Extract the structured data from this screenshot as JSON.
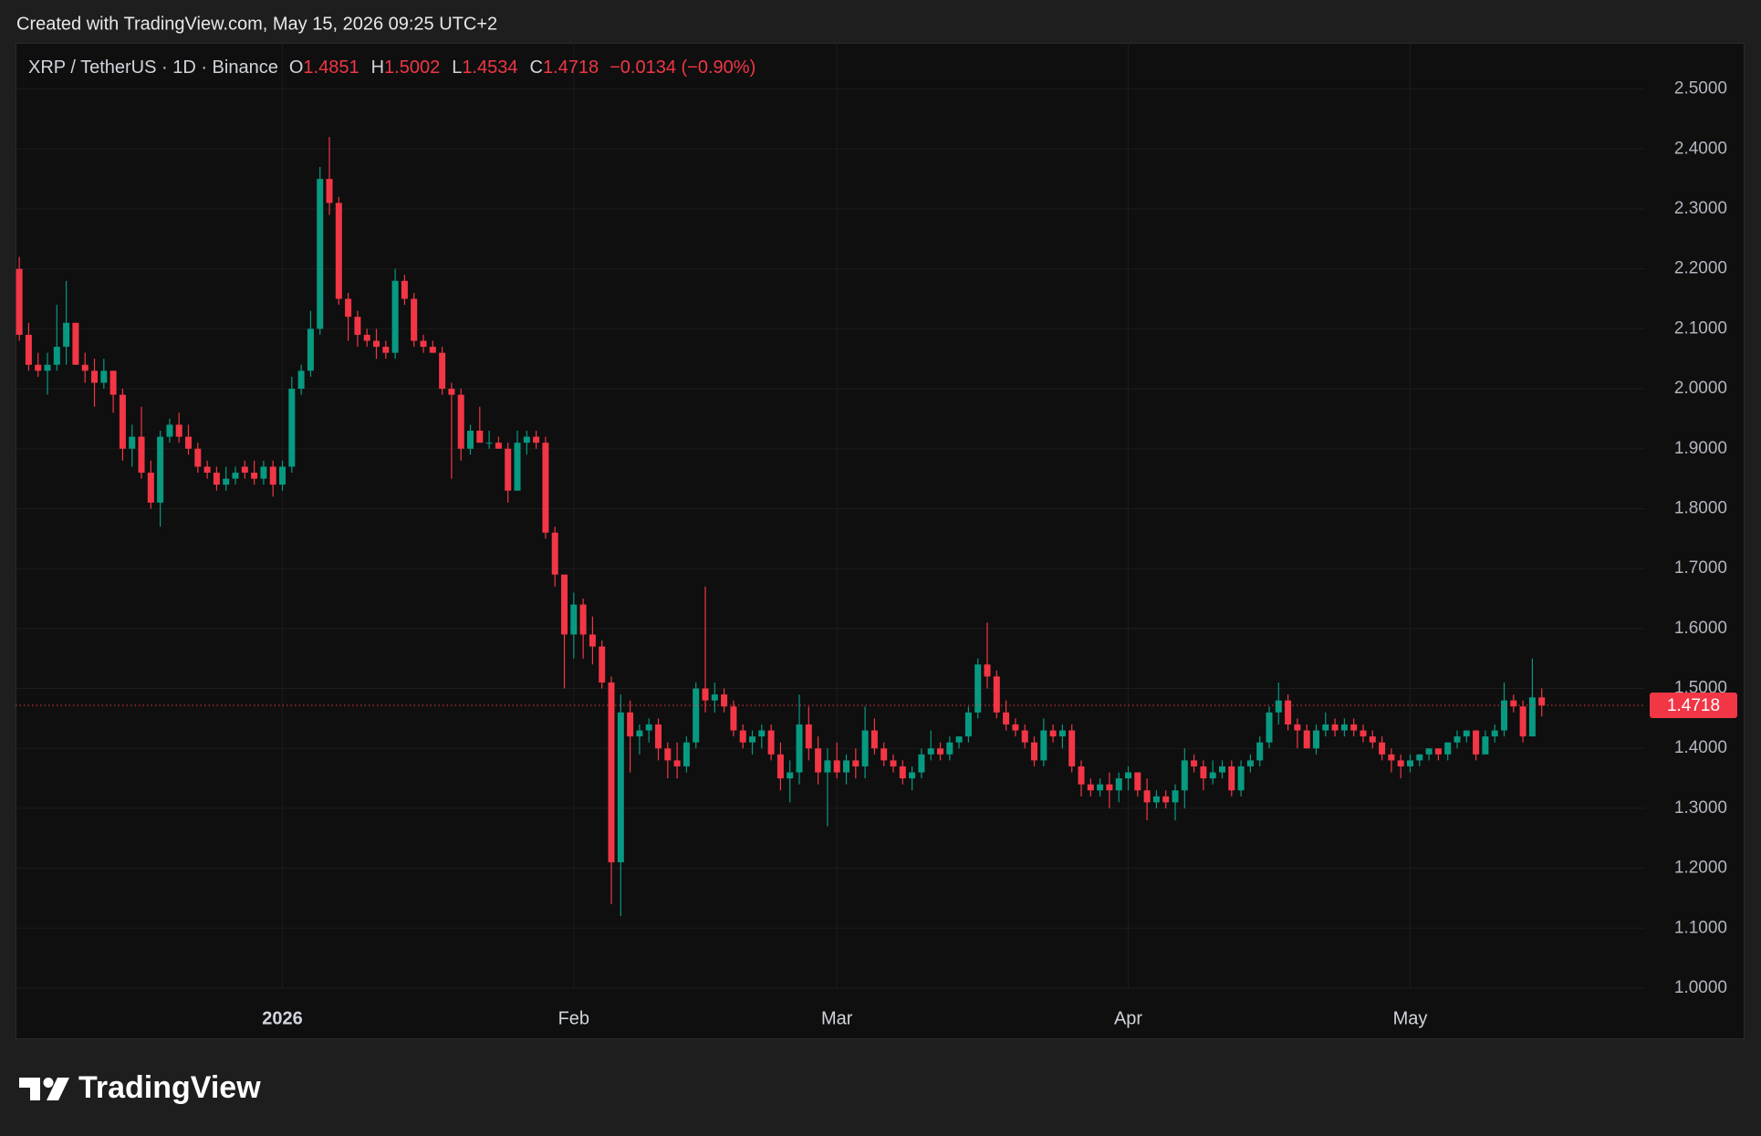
{
  "header": {
    "created": "Created with TradingView.com, May 15, 2026 09:25 UTC+2"
  },
  "footer": {
    "brand": "TradingView"
  },
  "chart_data": {
    "type": "candlestick",
    "title": "XRP / TetherUS · 1D · Binance",
    "ohlc_labels": [
      "O",
      "H",
      "L",
      "C"
    ],
    "change_label": "−0.0134 (−0.90%)",
    "up_color": "#089981",
    "down_color": "#f23645",
    "grid": true,
    "last_price_line": true,
    "xlim": [
      -0.4,
      173
    ],
    "xticks": [
      {
        "value": 28,
        "label": "2026"
      },
      {
        "value": 59,
        "label": "Feb"
      },
      {
        "value": 87,
        "label": "Mar"
      },
      {
        "value": 118,
        "label": "Apr"
      },
      {
        "value": 148,
        "label": "May"
      }
    ],
    "ylim": [
      1.0,
      2.577
    ],
    "yticks": [
      {
        "value": 1.0,
        "label": "1.0000"
      },
      {
        "value": 1.1,
        "label": "1.1000"
      },
      {
        "value": 1.2,
        "label": "1.2000"
      },
      {
        "value": 1.3,
        "label": "1.3000"
      },
      {
        "value": 1.4,
        "label": "1.4000"
      },
      {
        "value": 1.5,
        "label": "1.5000"
      },
      {
        "value": 1.6,
        "label": "1.6000"
      },
      {
        "value": 1.7,
        "label": "1.7000"
      },
      {
        "value": 1.8,
        "label": "1.8000"
      },
      {
        "value": 1.9,
        "label": "1.9000"
      },
      {
        "value": 2.0,
        "label": "2.0000"
      },
      {
        "value": 2.1,
        "label": "2.1000"
      },
      {
        "value": 2.2,
        "label": "2.2000"
      },
      {
        "value": 2.3,
        "label": "2.3000"
      },
      {
        "value": 2.4,
        "label": "2.4000"
      },
      {
        "value": 2.5,
        "label": "2.5000"
      }
    ],
    "open": [
      2.2,
      2.09,
      2.04,
      2.03,
      2.04,
      2.07,
      2.11,
      2.04,
      2.03,
      2.01,
      2.03,
      1.99,
      1.9,
      1.92,
      1.86,
      1.81,
      1.92,
      1.94,
      1.92,
      1.9,
      1.87,
      1.86,
      1.84,
      1.85,
      1.87,
      1.86,
      1.85,
      1.87,
      1.84,
      1.87,
      2.0,
      2.03,
      2.1,
      2.35,
      2.31,
      2.15,
      2.12,
      2.09,
      2.08,
      2.07,
      2.06,
      2.18,
      2.15,
      2.08,
      2.07,
      2.06,
      2.0,
      1.99,
      1.9,
      1.93,
      1.91,
      1.91,
      1.9,
      1.83,
      1.91,
      1.92,
      1.91,
      1.76,
      1.69,
      1.59,
      1.64,
      1.59,
      1.57,
      1.51,
      1.21,
      1.46,
      1.42,
      1.43,
      1.44,
      1.4,
      1.38,
      1.37,
      1.41,
      1.5,
      1.48,
      1.49,
      1.47,
      1.43,
      1.41,
      1.42,
      1.43,
      1.39,
      1.35,
      1.36,
      1.44,
      1.4,
      1.36,
      1.38,
      1.36,
      1.38,
      1.37,
      1.43,
      1.4,
      1.38,
      1.37,
      1.35,
      1.36,
      1.39,
      1.4,
      1.39,
      1.41,
      1.42,
      1.46,
      1.54,
      1.52,
      1.46,
      1.44,
      1.43,
      1.41,
      1.38,
      1.43,
      1.42,
      1.43,
      1.37,
      1.34,
      1.33,
      1.34,
      1.33,
      1.35,
      1.36,
      1.33,
      1.31,
      1.32,
      1.31,
      1.33,
      1.38,
      1.37,
      1.35,
      1.36,
      1.37,
      1.33,
      1.37,
      1.38,
      1.41,
      1.46,
      1.48,
      1.44,
      1.43,
      1.4,
      1.43,
      1.44,
      1.43,
      1.44,
      1.43,
      1.42,
      1.41,
      1.39,
      1.38,
      1.37,
      1.38,
      1.39,
      1.4,
      1.39,
      1.41,
      1.42,
      1.43,
      1.39,
      1.42,
      1.43,
      1.48,
      1.47,
      1.42,
      1.4851
    ],
    "high": [
      2.22,
      2.11,
      2.06,
      2.06,
      2.14,
      2.18,
      2.11,
      2.06,
      2.05,
      2.05,
      2.03,
      2.0,
      1.94,
      1.97,
      1.88,
      1.93,
      1.95,
      1.96,
      1.94,
      1.91,
      1.88,
      1.87,
      1.87,
      1.87,
      1.88,
      1.88,
      1.88,
      1.88,
      1.88,
      2.02,
      2.04,
      2.13,
      2.37,
      2.42,
      2.32,
      2.16,
      2.13,
      2.1,
      2.1,
      2.08,
      2.2,
      2.19,
      2.16,
      2.09,
      2.08,
      2.07,
      2.01,
      2.0,
      1.94,
      1.97,
      1.93,
      1.92,
      1.91,
      1.93,
      1.93,
      1.93,
      1.92,
      1.77,
      1.69,
      1.66,
      1.65,
      1.62,
      1.58,
      1.52,
      1.49,
      1.48,
      1.44,
      1.45,
      1.45,
      1.41,
      1.41,
      1.42,
      1.51,
      1.67,
      1.51,
      1.5,
      1.48,
      1.44,
      1.43,
      1.44,
      1.44,
      1.41,
      1.38,
      1.49,
      1.47,
      1.42,
      1.4,
      1.41,
      1.39,
      1.4,
      1.47,
      1.45,
      1.41,
      1.39,
      1.38,
      1.37,
      1.4,
      1.43,
      1.41,
      1.42,
      1.42,
      1.47,
      1.55,
      1.61,
      1.53,
      1.48,
      1.45,
      1.44,
      1.42,
      1.45,
      1.44,
      1.44,
      1.44,
      1.38,
      1.35,
      1.35,
      1.36,
      1.36,
      1.37,
      1.36,
      1.35,
      1.33,
      1.33,
      1.34,
      1.4,
      1.39,
      1.38,
      1.38,
      1.38,
      1.38,
      1.38,
      1.39,
      1.42,
      1.47,
      1.51,
      1.49,
      1.45,
      1.44,
      1.44,
      1.46,
      1.45,
      1.45,
      1.45,
      1.44,
      1.43,
      1.42,
      1.4,
      1.39,
      1.39,
      1.39,
      1.4,
      1.4,
      1.41,
      1.43,
      1.43,
      1.43,
      1.43,
      1.44,
      1.51,
      1.49,
      1.48,
      1.55,
      1.5002
    ],
    "low": [
      2.08,
      2.03,
      2.02,
      1.99,
      2.03,
      2.04,
      2.04,
      2.01,
      1.97,
      2.0,
      1.96,
      1.88,
      1.87,
      1.85,
      1.8,
      1.77,
      1.91,
      1.91,
      1.89,
      1.86,
      1.85,
      1.83,
      1.83,
      1.84,
      1.85,
      1.84,
      1.84,
      1.82,
      1.83,
      1.86,
      1.99,
      2.02,
      2.09,
      2.29,
      2.14,
      2.08,
      2.07,
      2.07,
      2.05,
      2.05,
      2.05,
      2.14,
      2.07,
      2.06,
      2.06,
      1.99,
      1.85,
      1.88,
      1.89,
      1.91,
      1.9,
      1.9,
      1.81,
      1.83,
      1.89,
      1.9,
      1.75,
      1.67,
      1.5,
      1.55,
      1.55,
      1.54,
      1.5,
      1.14,
      1.12,
      1.36,
      1.39,
      1.41,
      1.38,
      1.35,
      1.35,
      1.36,
      1.4,
      1.46,
      1.46,
      1.46,
      1.42,
      1.4,
      1.39,
      1.4,
      1.38,
      1.33,
      1.31,
      1.34,
      1.38,
      1.34,
      1.27,
      1.35,
      1.34,
      1.35,
      1.35,
      1.39,
      1.37,
      1.36,
      1.34,
      1.33,
      1.35,
      1.38,
      1.38,
      1.38,
      1.4,
      1.41,
      1.45,
      1.5,
      1.45,
      1.43,
      1.42,
      1.4,
      1.37,
      1.37,
      1.41,
      1.4,
      1.36,
      1.32,
      1.32,
      1.32,
      1.3,
      1.31,
      1.33,
      1.32,
      1.28,
      1.3,
      1.3,
      1.28,
      1.3,
      1.36,
      1.33,
      1.34,
      1.35,
      1.32,
      1.32,
      1.36,
      1.37,
      1.4,
      1.44,
      1.43,
      1.4,
      1.4,
      1.39,
      1.42,
      1.42,
      1.42,
      1.42,
      1.41,
      1.4,
      1.38,
      1.36,
      1.35,
      1.36,
      1.37,
      1.38,
      1.38,
      1.38,
      1.4,
      1.41,
      1.38,
      1.39,
      1.41,
      1.42,
      1.46,
      1.41,
      1.42,
      1.4534
    ],
    "close": [
      2.09,
      2.04,
      2.03,
      2.04,
      2.07,
      2.11,
      2.04,
      2.03,
      2.01,
      2.03,
      1.99,
      1.9,
      1.92,
      1.86,
      1.81,
      1.92,
      1.94,
      1.92,
      1.9,
      1.87,
      1.86,
      1.84,
      1.85,
      1.86,
      1.86,
      1.85,
      1.87,
      1.84,
      1.87,
      2.0,
      2.03,
      2.1,
      2.35,
      2.31,
      2.15,
      2.12,
      2.09,
      2.08,
      2.07,
      2.06,
      2.18,
      2.15,
      2.08,
      2.07,
      2.06,
      2.0,
      1.99,
      1.9,
      1.93,
      1.91,
      1.91,
      1.9,
      1.83,
      1.91,
      1.92,
      1.91,
      1.76,
      1.69,
      1.59,
      1.64,
      1.59,
      1.57,
      1.51,
      1.21,
      1.46,
      1.42,
      1.43,
      1.44,
      1.4,
      1.38,
      1.37,
      1.41,
      1.5,
      1.48,
      1.49,
      1.47,
      1.43,
      1.41,
      1.42,
      1.43,
      1.39,
      1.35,
      1.36,
      1.44,
      1.4,
      1.36,
      1.38,
      1.36,
      1.38,
      1.37,
      1.43,
      1.4,
      1.38,
      1.37,
      1.35,
      1.36,
      1.39,
      1.4,
      1.39,
      1.41,
      1.42,
      1.46,
      1.54,
      1.52,
      1.46,
      1.44,
      1.43,
      1.41,
      1.38,
      1.43,
      1.42,
      1.43,
      1.37,
      1.34,
      1.33,
      1.34,
      1.33,
      1.35,
      1.36,
      1.33,
      1.31,
      1.32,
      1.31,
      1.33,
      1.38,
      1.37,
      1.35,
      1.36,
      1.37,
      1.33,
      1.37,
      1.38,
      1.41,
      1.46,
      1.48,
      1.44,
      1.43,
      1.4,
      1.43,
      1.44,
      1.43,
      1.44,
      1.43,
      1.42,
      1.41,
      1.39,
      1.38,
      1.37,
      1.38,
      1.39,
      1.4,
      1.39,
      1.41,
      1.42,
      1.43,
      1.39,
      1.42,
      1.43,
      1.48,
      1.47,
      1.42,
      1.4851,
      1.4718
    ]
  }
}
